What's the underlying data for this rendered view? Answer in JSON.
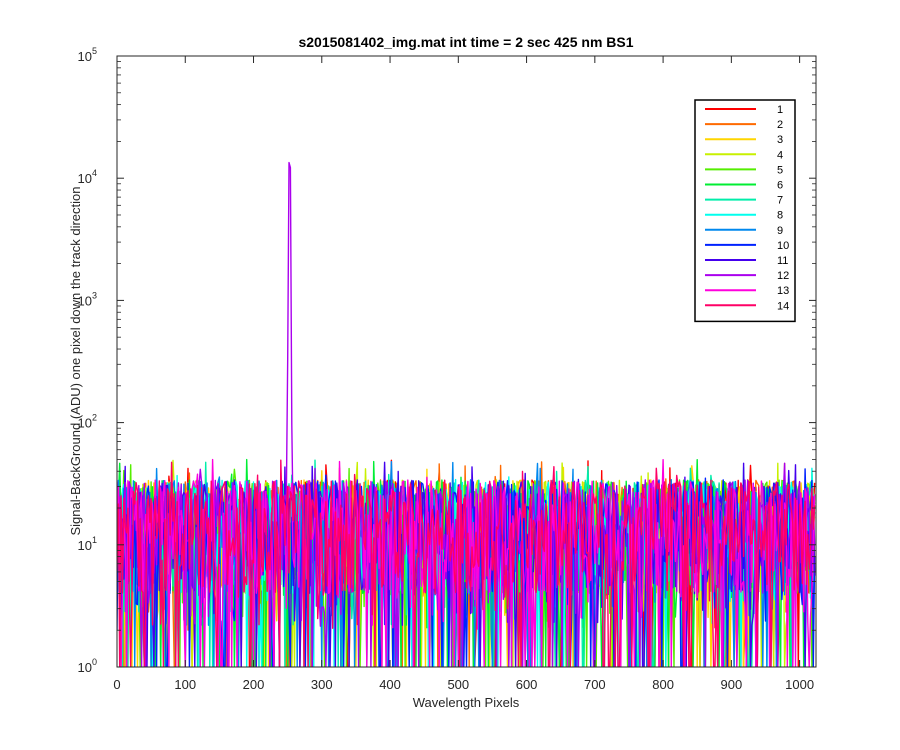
{
  "chart_data": {
    "type": "line",
    "title": "s2015081402_img.mat int time = 2 sec  425 nm BS1",
    "xlabel": "Wavelength Pixels",
    "ylabel": "Signal-BackGround (ADU) one pixel down the track direction",
    "xlim": [
      0,
      1024
    ],
    "ylim": [
      1,
      100000
    ],
    "yscale": "log",
    "xticks": [
      "0",
      "100",
      "200",
      "300",
      "400",
      "500",
      "600",
      "700",
      "800",
      "900",
      "1000"
    ],
    "ytick_bases": [
      "10",
      "10",
      "10",
      "10",
      "10",
      "10"
    ],
    "ytick_exponents": [
      "0",
      "1",
      "2",
      "3",
      "4",
      "5"
    ],
    "grid": false,
    "legend_position": "top-right",
    "noise_range": [
      1,
      50
    ],
    "peak": {
      "series": "12",
      "x": 253,
      "y": 39000
    },
    "series": [
      {
        "name": "1",
        "color": "#ff0000"
      },
      {
        "name": "2",
        "color": "#ff6a00"
      },
      {
        "name": "3",
        "color": "#ffd500"
      },
      {
        "name": "4",
        "color": "#c8f000"
      },
      {
        "name": "5",
        "color": "#55ee00"
      },
      {
        "name": "6",
        "color": "#00ee33"
      },
      {
        "name": "7",
        "color": "#00eeaa"
      },
      {
        "name": "8",
        "color": "#00ffee"
      },
      {
        "name": "9",
        "color": "#0088ee"
      },
      {
        "name": "10",
        "color": "#0022ff"
      },
      {
        "name": "11",
        "color": "#4400ee"
      },
      {
        "name": "12",
        "color": "#aa00ee"
      },
      {
        "name": "13",
        "color": "#ff00dd"
      },
      {
        "name": "14",
        "color": "#ff0066"
      }
    ]
  }
}
